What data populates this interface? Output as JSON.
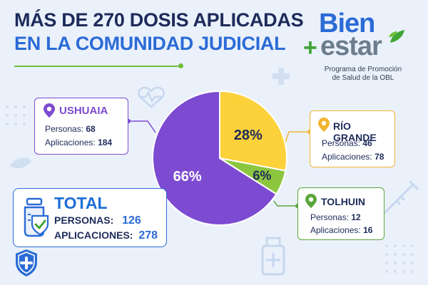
{
  "title": {
    "line1": "MÁS DE 270 DOSIS APLICADAS",
    "line2": "EN LA COMUNIDAD JUDICIAL"
  },
  "brand": {
    "word1": "Bien",
    "word2": "estar",
    "plus": "+",
    "subtitle_line1": "Programa de Promoción",
    "subtitle_line2": "de Salud de la OBL"
  },
  "regions": {
    "ushuaia": {
      "name": "USHUAIA",
      "personas_label": "Personas:",
      "personas": "68",
      "aplicaciones_label": "Aplicaciones:",
      "aplicaciones": "184",
      "color": "#7d4bd1"
    },
    "rio_grande": {
      "name": "RÍO GRANDE",
      "personas_label": "Personas:",
      "personas": "46",
      "aplicaciones_label": "Aplicaciones:",
      "aplicaciones": "78",
      "color": "#f2b531"
    },
    "tolhuin": {
      "name": "TOLHUIN",
      "personas_label": "Personas:",
      "personas": "12",
      "aplicaciones_label": "Aplicaciones:",
      "aplicaciones": "16",
      "color": "#7bbf3f"
    }
  },
  "total": {
    "title": "TOTAL",
    "personas_label": "PERSONAS:",
    "personas": "126",
    "aplicaciones_label": "APLICACIONES:",
    "aplicaciones": "278"
  },
  "chart_data": {
    "type": "pie",
    "categories": [
      "USHUAIA",
      "RÍO GRANDE",
      "TOLHUIN"
    ],
    "values": [
      66,
      28,
      6
    ],
    "labels": [
      "66%",
      "28%",
      "6%"
    ],
    "colors": [
      "#7d4bd1",
      "#fcd13a",
      "#8cc63f"
    ]
  },
  "icons": [
    "location-pin-icon",
    "vaccine-shield-icon",
    "shield-plus-icon",
    "heart-pulse-icon",
    "syringe-icon",
    "vial-icon",
    "leaf-icon",
    "plus-icon"
  ]
}
